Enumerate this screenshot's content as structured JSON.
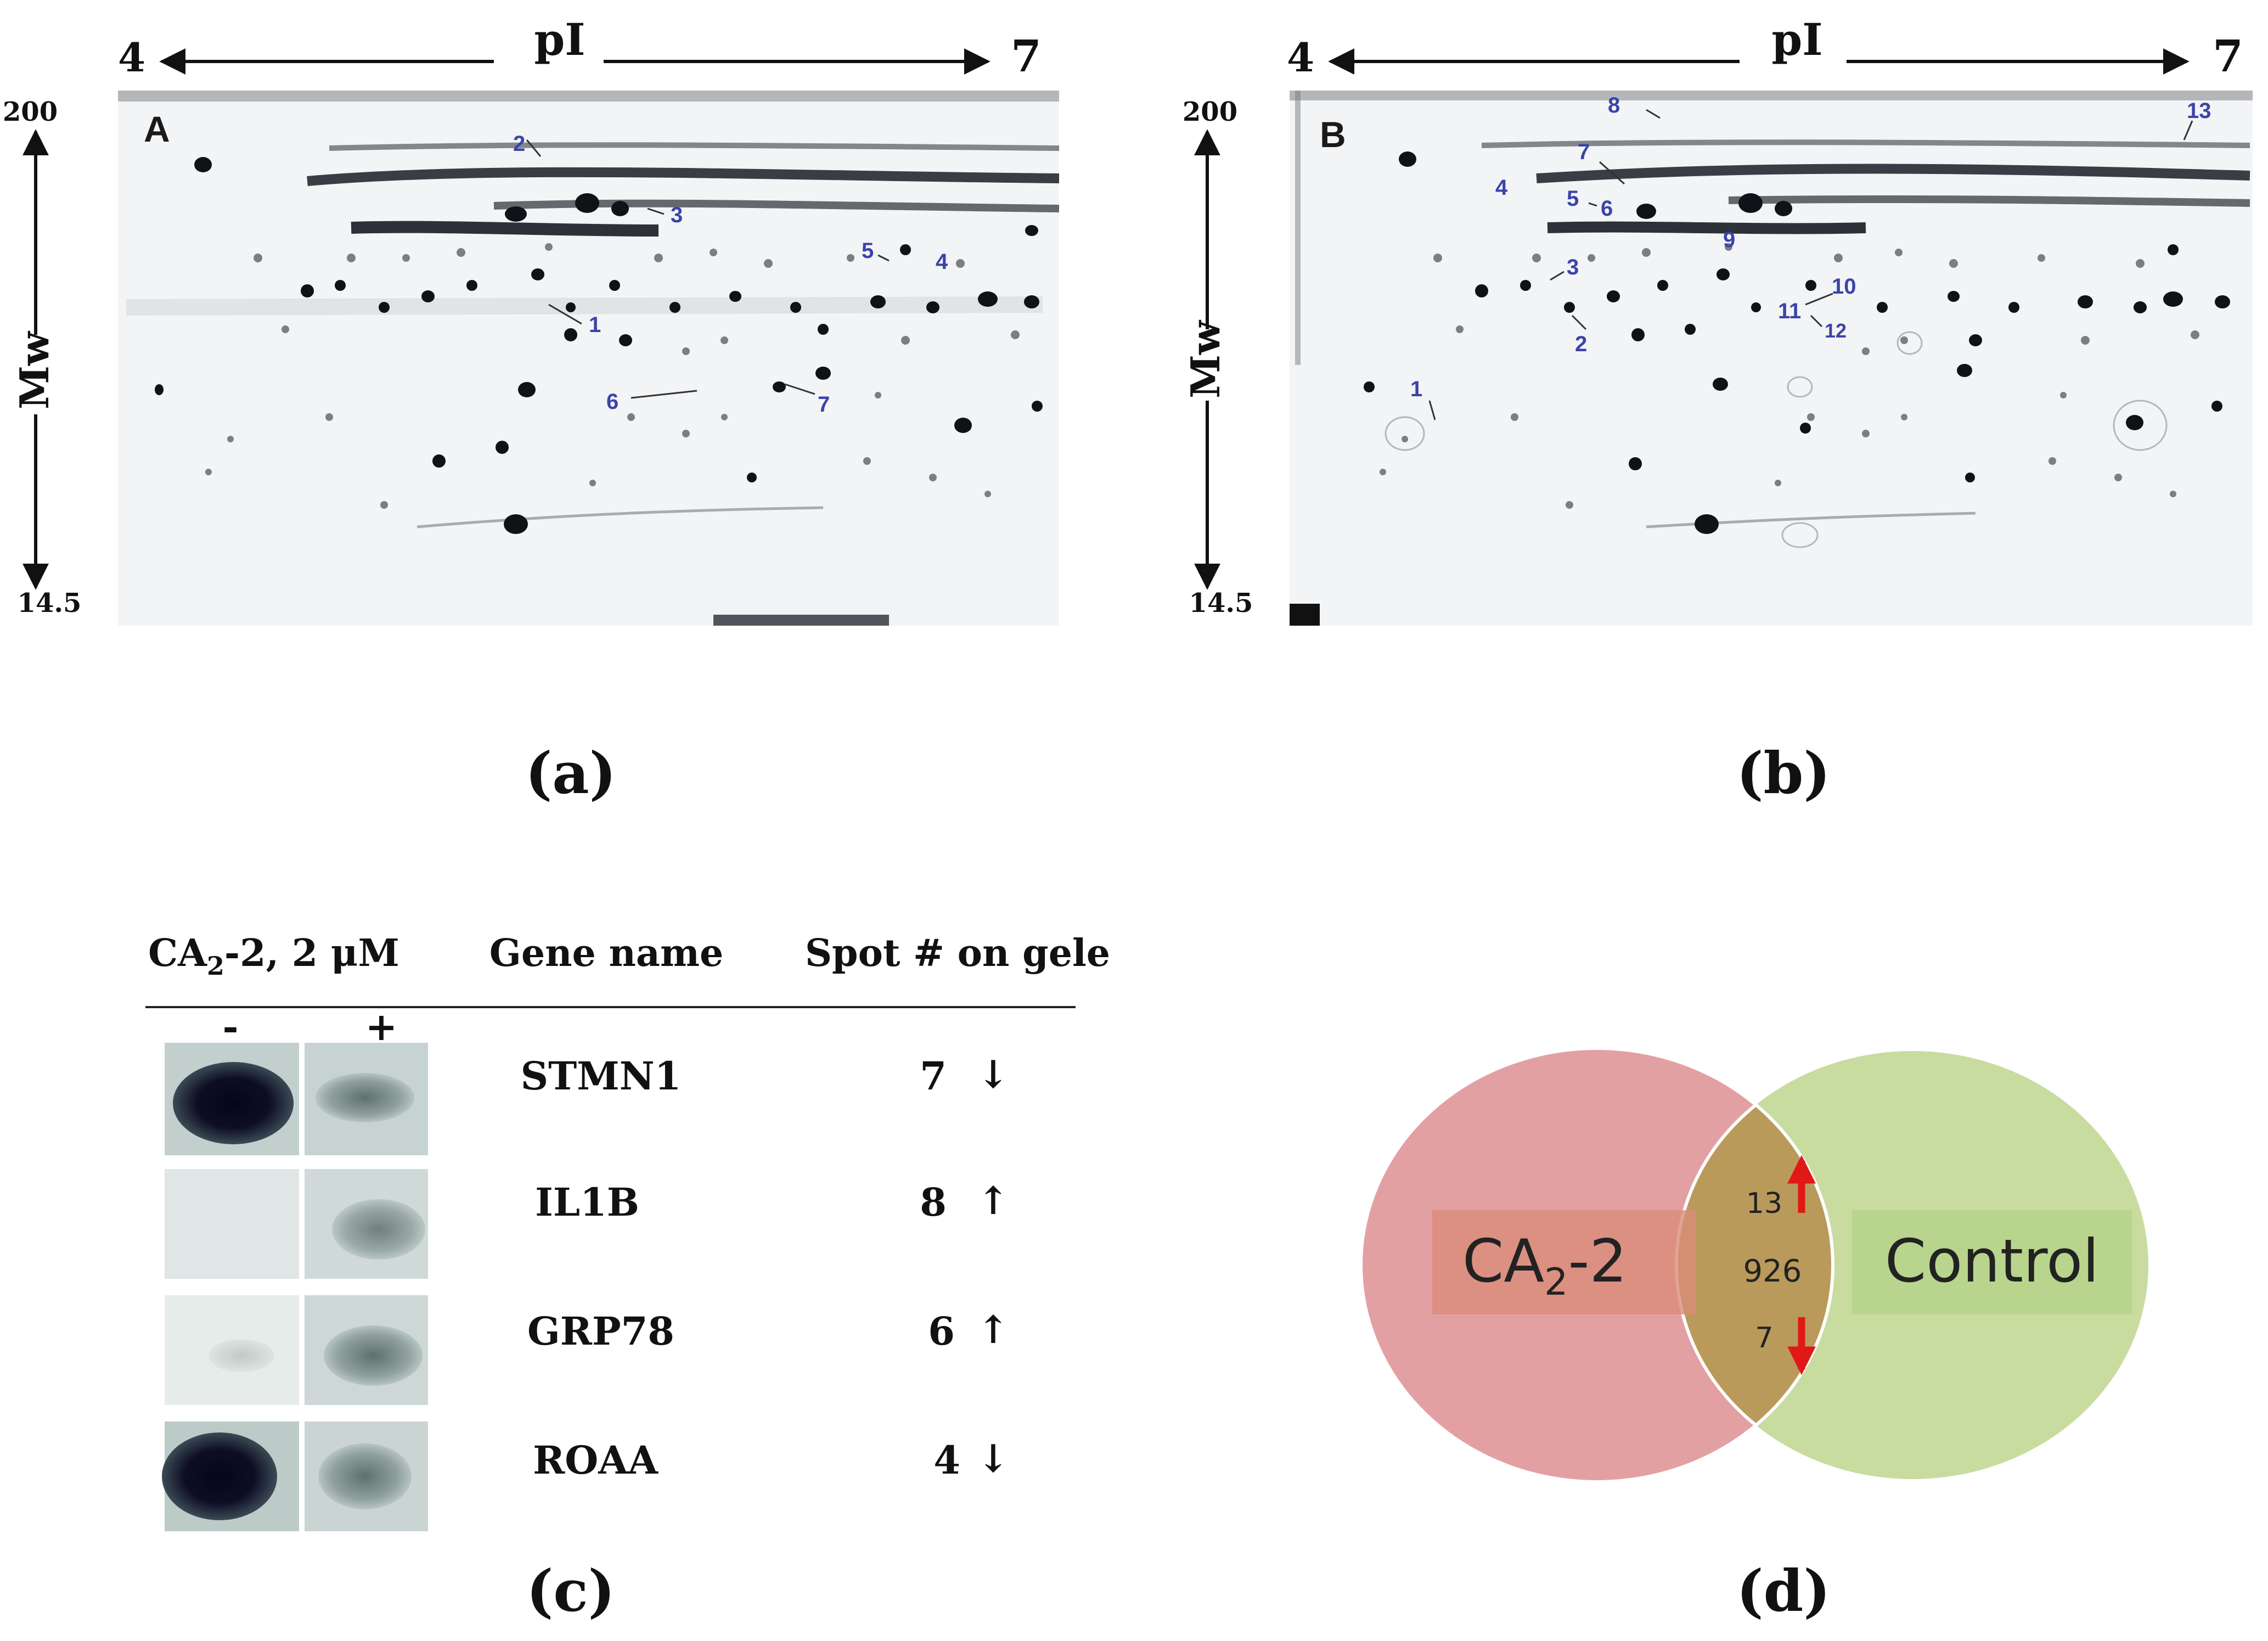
{
  "panel_a": {
    "caption": "(a)",
    "corner_letter": "A",
    "pi_label": "pI",
    "pi_min": "4",
    "pi_max": "7",
    "mw_label": "Mw",
    "mw_max": "200",
    "mw_min": "14.5",
    "spots": [
      "1",
      "2",
      "3",
      "4",
      "5",
      "6",
      "7"
    ]
  },
  "panel_b": {
    "caption": "(b)",
    "corner_letter": "B",
    "pi_label": "pI",
    "pi_min": "4",
    "pi_max": "7",
    "mw_label": "Mw",
    "mw_max": "200",
    "mw_min": "14.5",
    "spots": [
      "1",
      "2",
      "3",
      "4",
      "5",
      "6",
      "7",
      "8",
      "9",
      "10",
      "11",
      "12",
      "13"
    ]
  },
  "panel_c": {
    "caption": "(c)",
    "col_treatment": "CA2-2, 2 μM",
    "col_treatment_parts": {
      "pre": "CA",
      "sub": "2",
      "post": "-2, 2 μM"
    },
    "col_gene": "Gene name",
    "col_spot": "Spot # on gele",
    "minus": "-",
    "plus": "+",
    "rows": [
      {
        "gene": "STMN1",
        "spot": "7",
        "direction": "↓"
      },
      {
        "gene": "IL1B",
        "spot": "8",
        "direction": "↑"
      },
      {
        "gene": "GRP78",
        "spot": "6",
        "direction": "↑"
      },
      {
        "gene": "ROAA",
        "spot": "4",
        "direction": "↓"
      }
    ]
  },
  "panel_d": {
    "caption": "(d)",
    "left_label_parts": {
      "pre": "CA",
      "sub": "2",
      "post": "-2"
    },
    "right_label": "Control",
    "up_count": "13",
    "shared_count": "926",
    "down_count": "7",
    "colors": {
      "left": "#e3a0a3",
      "right": "#c8dca0",
      "overlap": "#b99a5a",
      "arrow": "#e01818"
    }
  }
}
